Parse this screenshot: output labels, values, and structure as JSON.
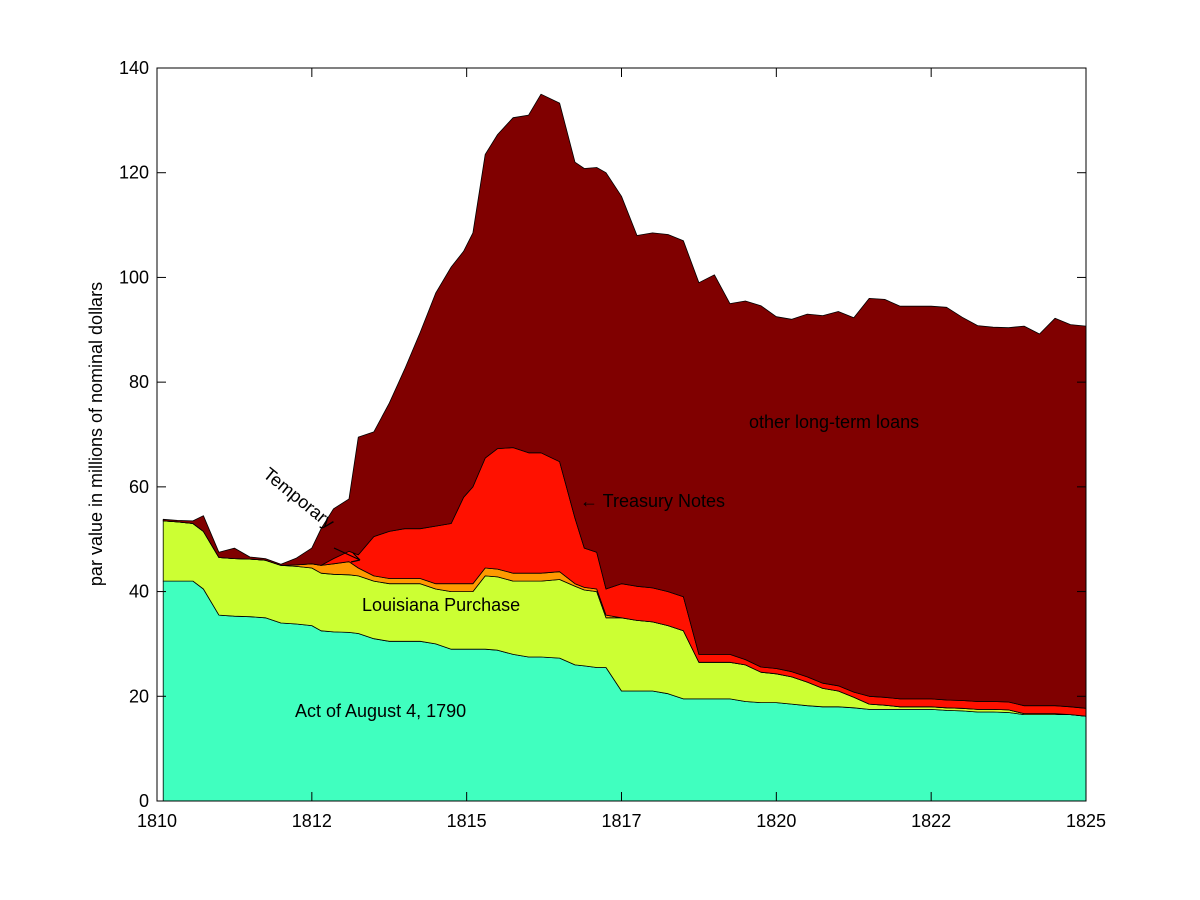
{
  "chart_data": {
    "type": "area",
    "stacked": true,
    "ylabel": "par value in millions of nominal dollars",
    "xlim": [
      1810,
      1825
    ],
    "ylim": [
      0,
      140
    ],
    "xticks": [
      "1810",
      "1812",
      "1815",
      "1817",
      "1820",
      "1822",
      "1825"
    ],
    "yticks": [
      "0",
      "20",
      "40",
      "60",
      "80",
      "100",
      "120",
      "140"
    ],
    "grid": false,
    "x": [
      1810.1,
      1810.33,
      1810.58,
      1810.75,
      1811.0,
      1811.25,
      1811.5,
      1811.75,
      1812.0,
      1812.25,
      1812.5,
      1812.65,
      1812.85,
      1813.1,
      1813.25,
      1813.5,
      1813.75,
      1814.0,
      1814.25,
      1814.5,
      1814.75,
      1814.95,
      1815.1,
      1815.3,
      1815.5,
      1815.75,
      1816.0,
      1816.2,
      1816.5,
      1816.75,
      1816.9,
      1817.1,
      1817.25,
      1817.5,
      1817.75,
      1818.0,
      1818.25,
      1818.5,
      1818.75,
      1819.0,
      1819.25,
      1819.5,
      1819.75,
      1820.0,
      1820.25,
      1820.5,
      1820.75,
      1821.0,
      1821.25,
      1821.5,
      1821.75,
      1822.0,
      1822.25,
      1822.5,
      1822.75,
      1823.0,
      1823.25,
      1823.5,
      1823.75,
      1824.0,
      1824.25,
      1824.5,
      1824.75,
      1825.0
    ],
    "series": [
      {
        "name": "Act of August 4, 1790",
        "color": "#40ffbf",
        "values": [
          42.0,
          42.0,
          42.0,
          40.5,
          35.5,
          35.3,
          35.2,
          35.0,
          34.0,
          33.8,
          33.5,
          32.5,
          32.3,
          32.2,
          32.0,
          31.0,
          30.5,
          30.5,
          30.5,
          30.0,
          29.0,
          29.0,
          29.0,
          29.0,
          28.8,
          28.0,
          27.5,
          27.5,
          27.3,
          26.0,
          25.8,
          25.5,
          25.5,
          21.0,
          21.0,
          21.0,
          20.5,
          19.5,
          19.5,
          19.5,
          19.5,
          19.0,
          18.8,
          18.8,
          18.5,
          18.2,
          18.0,
          18.0,
          17.8,
          17.5,
          17.5,
          17.5,
          17.5,
          17.5,
          17.3,
          17.2,
          17.0,
          17.0,
          16.9,
          16.5,
          16.5,
          16.5,
          16.5,
          16.2
        ]
      },
      {
        "name": "Louisiana Purchase",
        "color": "#ccff33",
        "values": [
          11.5,
          11.3,
          11.0,
          11.0,
          11.0,
          11.0,
          11.0,
          11.0,
          11.0,
          11.0,
          11.0,
          11.0,
          11.0,
          11.0,
          11.0,
          11.0,
          11.0,
          11.0,
          11.0,
          10.5,
          11.0,
          11.0,
          11.0,
          14.0,
          14.0,
          14.0,
          14.5,
          14.5,
          15.0,
          15.0,
          14.5,
          14.5,
          9.5,
          14.0,
          13.5,
          13.2,
          13.0,
          13.0,
          7.0,
          7.0,
          7.0,
          7.0,
          5.8,
          5.5,
          5.2,
          4.5,
          3.5,
          3.0,
          2.0,
          1.0,
          0.8,
          0.5,
          0.5,
          0.5,
          0.5,
          0.5,
          0.5,
          0.5,
          0.5,
          0.2,
          0.2,
          0.2,
          0.0,
          0.0
        ]
      },
      {
        "name": "Temporary",
        "color": "#ff9900",
        "values": [
          0,
          0,
          0,
          0,
          0,
          0,
          0,
          0,
          0,
          0.3,
          0.8,
          1.5,
          2.0,
          2.5,
          1.5,
          1.0,
          1.0,
          1.0,
          1.0,
          1.0,
          1.5,
          1.5,
          1.5,
          1.5,
          1.5,
          1.5,
          1.5,
          1.5,
          1.5,
          0.5,
          0.5,
          0.5,
          0.5,
          0,
          0,
          0,
          0,
          0,
          0,
          0,
          0,
          0,
          0,
          0,
          0,
          0,
          0,
          0,
          0,
          0,
          0,
          0,
          0,
          0,
          0,
          0,
          0,
          0,
          0,
          0,
          0,
          0,
          0,
          0
        ]
      },
      {
        "name": "Treasury Notes",
        "color": "#ff1100",
        "values": [
          0,
          0,
          0,
          0,
          0,
          0,
          0,
          0,
          0,
          0,
          0,
          0,
          1.0,
          2.0,
          2.5,
          7.5,
          9.0,
          9.5,
          9.5,
          11.0,
          11.5,
          16.5,
          18.5,
          21.0,
          23.0,
          24.0,
          23.0,
          23.0,
          21.0,
          12.5,
          7.5,
          7.0,
          5.0,
          6.5,
          6.5,
          6.5,
          6.5,
          6.5,
          1.5,
          1.5,
          1.5,
          1.0,
          1.0,
          1.0,
          1.0,
          1.0,
          1.0,
          1.0,
          1.0,
          1.5,
          1.5,
          1.5,
          1.5,
          1.5,
          1.5,
          1.5,
          1.5,
          1.5,
          1.5,
          1.5,
          1.5,
          1.5,
          1.5,
          1.5
        ]
      },
      {
        "name": "other long-term loans",
        "color": "#800000",
        "values": [
          0.3,
          0.3,
          0.5,
          3.0,
          1.0,
          2.0,
          0.4,
          0.3,
          0.2,
          1.3,
          3.0,
          7.0,
          9.5,
          10.0,
          22.5,
          20.0,
          24.5,
          30.5,
          37.5,
          44.5,
          49.0,
          47.0,
          48.5,
          58.0,
          60.0,
          63.0,
          64.5,
          68.5,
          68.5,
          68.0,
          72.5,
          73.5,
          79.5,
          74.0,
          67.0,
          67.8,
          68.2,
          68.0,
          71.0,
          72.5,
          67.0,
          68.5,
          69.0,
          67.2,
          67.3,
          69.3,
          70.2,
          71.5,
          71.5,
          76.0,
          76.0,
          75.0,
          75.0,
          75.0,
          75.0,
          73.2,
          71.8,
          71.5,
          71.5,
          72.5,
          71.0,
          74.0,
          73.0,
          73.0
        ]
      }
    ],
    "annotations": {
      "act_1790": "Act of August 4, 1790",
      "louisiana": "Louisiana Purchase",
      "temporary": "Temporary",
      "treasury_notes": "← Treasury Notes",
      "other_loans": "other long-term loans"
    }
  }
}
